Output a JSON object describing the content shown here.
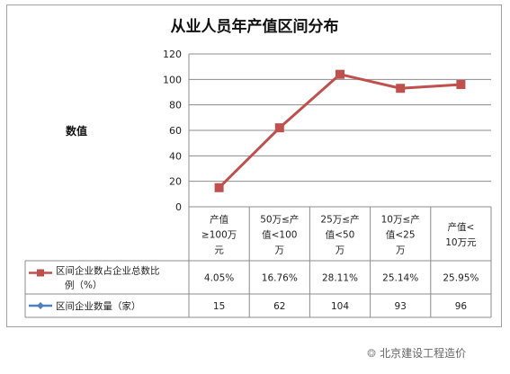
{
  "chart_data": {
    "type": "line",
    "title": "从业人员年产值区间分布",
    "ylabel": "数值",
    "ylim": [
      0,
      120
    ],
    "yticks": [
      0,
      20,
      40,
      60,
      80,
      100,
      120
    ],
    "grid": true,
    "categories": [
      [
        "产值",
        "≥100万",
        "元"
      ],
      [
        "50万≤产",
        "值<100",
        "万"
      ],
      [
        "25万≤产",
        "值<50",
        "万"
      ],
      [
        "10万≤产",
        "值<25",
        "万"
      ],
      [
        "产值<",
        "10万元"
      ]
    ],
    "series": [
      {
        "name": "区间企业数占企业总数比例（%）",
        "name_lines": [
          "区间企业数占企业总数比",
          "例（%）"
        ],
        "values": [
          "4.05%",
          "16.76%",
          "28.11%",
          "25.14%",
          "25.95%"
        ],
        "color": "#c0504d",
        "plotted": false
      },
      {
        "name": "区间企业数量（家）",
        "name_lines": [
          "区间企业数量（家）"
        ],
        "values": [
          15,
          62,
          104,
          93,
          96
        ],
        "color": "#4f81bd",
        "plotted": true
      }
    ],
    "line_color": "#c0504d",
    "legend": "data-table"
  },
  "watermark": {
    "text": "北京建设工程造价",
    "icon": "wechat-icon"
  }
}
